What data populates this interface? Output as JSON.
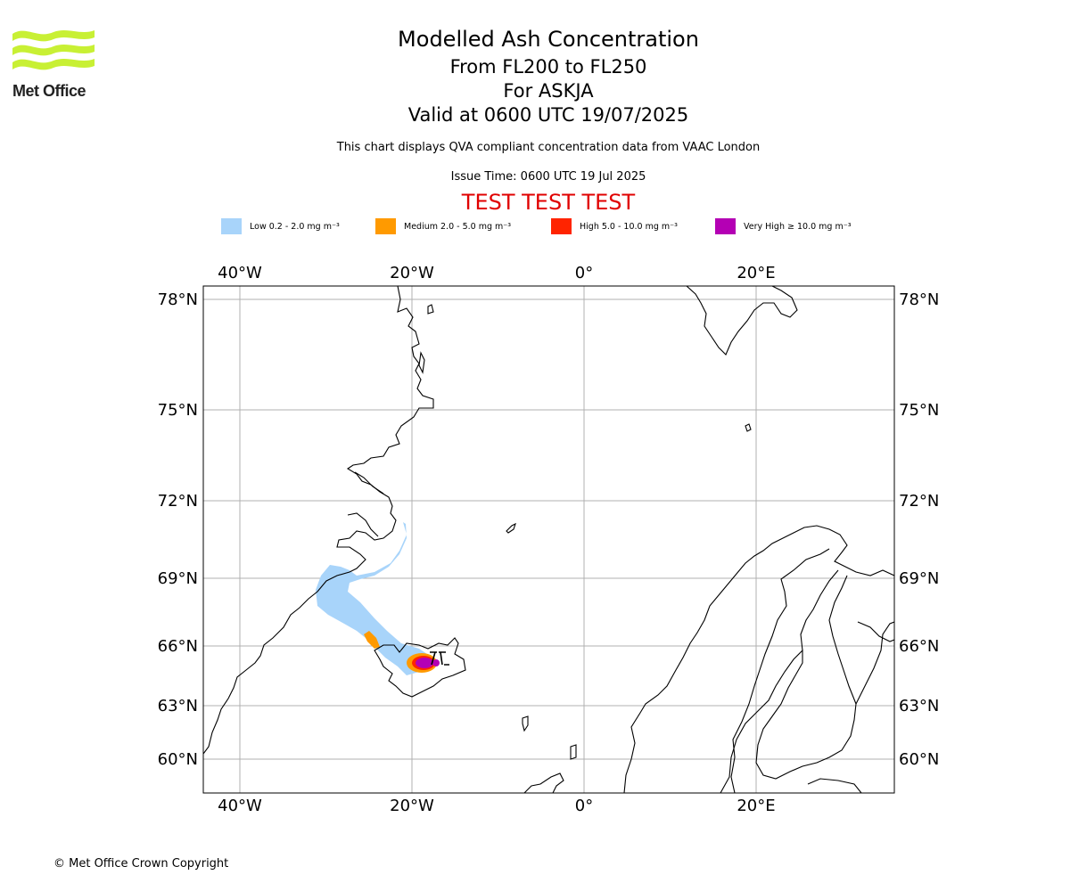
{
  "header": {
    "title": "Modelled Ash Concentration",
    "levels": "From FL200 to FL250",
    "volcano": "For ASKJA",
    "valid": "Valid at 0600 UTC 19/07/2025",
    "note": "This chart displays QVA compliant concentration data from VAAC London",
    "issue": "Issue Time: 0600 UTC 19 Jul 2025",
    "test_banner": "TEST TEST TEST"
  },
  "logo": {
    "text": "Met Office",
    "color": "#c8f034"
  },
  "legend": [
    {
      "label": "Low 0.2 - 2.0 mg m⁻³",
      "color": "#a8d4fa"
    },
    {
      "label": "Medium 2.0 - 5.0 mg m⁻³",
      "color": "#ff9a00"
    },
    {
      "label": "High 5.0 - 10.0 mg m⁻³",
      "color": "#ff2400"
    },
    {
      "label": "Very High ≥ 10.0 mg m⁻³",
      "color": "#b400b4"
    }
  ],
  "map": {
    "lon_ticks_top": [
      "40°W",
      "20°W",
      "0°",
      "20°E"
    ],
    "lon_ticks_bottom": [
      "40°W",
      "20°W",
      "0°",
      "20°E"
    ],
    "lat_ticks_left": [
      "78°N",
      "75°N",
      "72°N",
      "69°N",
      "66°N",
      "63°N",
      "60°N"
    ],
    "lat_ticks_right": [
      "78°N",
      "75°N",
      "72°N",
      "69°N",
      "66°N",
      "63°N",
      "60°N"
    ],
    "volcano_marker_lat": 65.03,
    "volcano_marker_lon": -16.75
  },
  "footer": {
    "copyright": "© Met Office Crown Copyright"
  }
}
